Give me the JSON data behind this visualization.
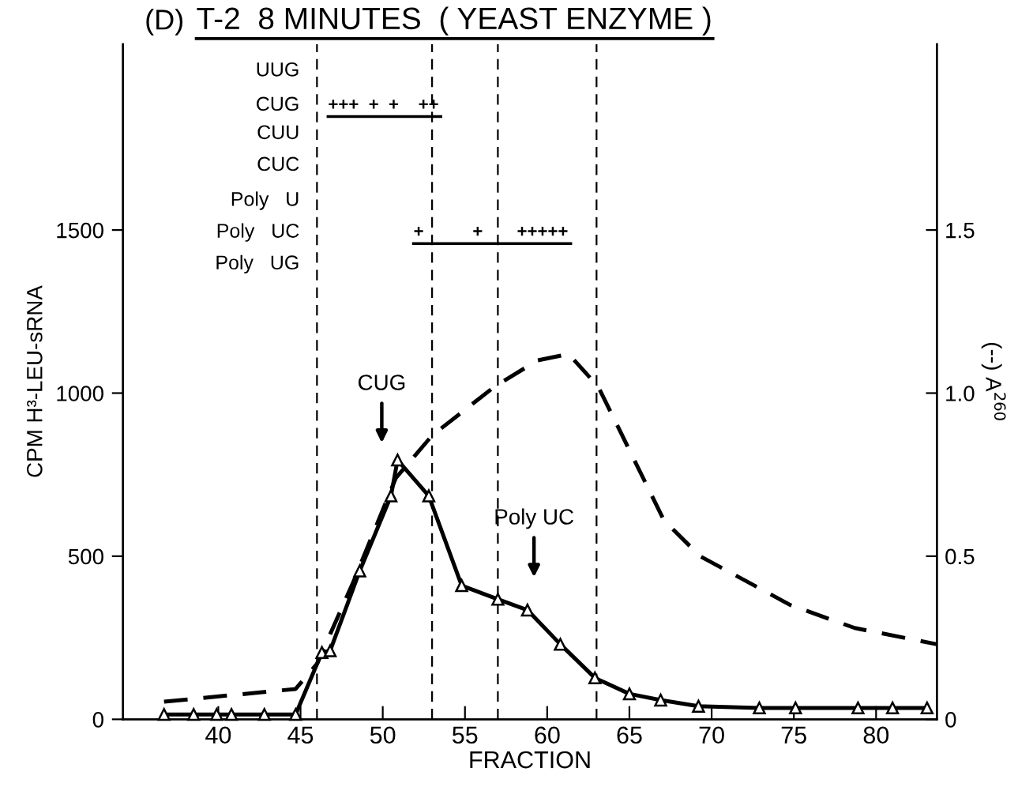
{
  "chart_data": {
    "type": "line",
    "title": "T-2  8 MINUTES  ( YEAST ENZYME )",
    "xlabel": "FRACTION",
    "ylabel": "CPM H³-LEU-sRNA",
    "y2label": "(--) A$^{260}$",
    "xlim": [
      34.2,
      83.7
    ],
    "xticks": [
      40,
      45,
      50,
      55,
      60,
      65,
      70,
      75,
      80
    ],
    "ylim": [
      0,
      2070
    ],
    "yticks": [
      0,
      500,
      1000,
      1500
    ],
    "y2lim": [
      0,
      2.07
    ],
    "y2ticks": [
      0,
      {
        "value": 0.5,
        "label": "0.5"
      },
      {
        "value": 1,
        "label": "1.0"
      },
      {
        "value": 1.5,
        "label": "1.5"
      }
    ],
    "series": [
      {
        "color": "#000000",
        "marker": "triangle",
        "line_style": "solid",
        "x": [
          36.7,
          38.5,
          39.9,
          40.8,
          42.8,
          44.7,
          46.3,
          46.8,
          48.6,
          50.5,
          50.9,
          52.8,
          54.8,
          57.0,
          58.8,
          60.8,
          62.9,
          65.0,
          66.9,
          69.2,
          72.9,
          75.1,
          78.9,
          81.0,
          83.1
        ],
        "values": [
          15,
          15,
          15,
          15,
          15,
          15,
          205,
          210,
          455,
          685,
          795,
          685,
          410,
          368,
          335,
          230,
          127,
          78,
          59,
          40,
          35,
          35,
          35,
          35,
          35
        ]
      },
      {
        "color": "#000000",
        "marker": "none",
        "line_style": "dashed",
        "axis": "y2",
        "x": [
          36.7,
          44.7,
          46.0,
          48.2,
          50.8,
          53.0,
          56.8,
          59.4,
          61.3,
          63.1,
          67.1,
          69.3,
          74.8,
          78.7,
          83.7
        ],
        "values": [
          0.054,
          0.093,
          0.17,
          0.42,
          0.74,
          0.87,
          1.02,
          1.1,
          1.12,
          1.02,
          0.61,
          0.5,
          0.35,
          0.28,
          0.23
        ]
      }
    ],
    "ref_lines": [
      {
        "axis": "x",
        "value": 46,
        "color": "#000000",
        "line_style": "dashed"
      },
      {
        "axis": "x",
        "value": 53,
        "color": "#000000",
        "line_style": "dashed"
      },
      {
        "axis": "x",
        "value": 57,
        "color": "#000000",
        "line_style": "dashed"
      },
      {
        "axis": "x",
        "value": 63,
        "color": "#000000",
        "line_style": "dashed"
      }
    ],
    "annotations": [
      "(D)",
      "CUG",
      "Poly UC",
      "UUG",
      "CUG",
      "CUU",
      "CUC",
      "Poly   U",
      "Poly   UC",
      "Poly   UG",
      "+++  +  +    ++",
      "+          +       +++++"
    ],
    "grid": false,
    "legend": false
  }
}
